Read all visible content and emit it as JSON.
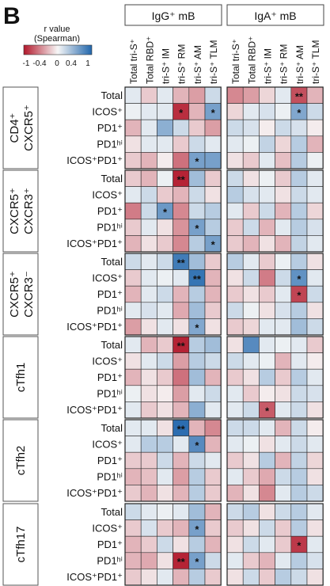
{
  "panel_letter": "B",
  "legend": {
    "title_line1": "r value",
    "title_line2": "(Spearman)",
    "ticks": [
      "-1",
      "-0.4",
      "0",
      "0.4",
      "1"
    ],
    "scale_min": -1,
    "scale_max": 1,
    "color_negative": "#b2182b",
    "color_mid": "#f7f7f7",
    "color_positive": "#2166ac"
  },
  "chart_data": {
    "type": "heatmap",
    "groups": [
      "IgG⁺ mB",
      "IgA⁺ mB"
    ],
    "columns": [
      "Total tri-S⁺",
      "Total RBD⁺",
      "tri-S⁺ IM",
      "tri-S⁺ RM",
      "tri-S⁺ AM",
      "tri-S⁺ TLM"
    ],
    "row_labels": [
      "Total",
      "ICOS⁺",
      "PD1⁺",
      "PD1ʰⁱ",
      "ICOS⁺PD1⁺"
    ],
    "blocks": [
      {
        "name_lines": [
          "CD4⁺",
          "CXCR5⁺"
        ],
        "igg": [
          [
            0.1,
            -0.2,
            0.1,
            -0.3,
            -0.4,
            0.2
          ],
          [
            0.05,
            0.1,
            0.1,
            -0.9,
            -0.3,
            0.6
          ],
          [
            -0.3,
            0.1,
            0.5,
            0.2,
            -0.2,
            -0.4
          ],
          [
            -0.1,
            0.1,
            0.1,
            -0.2,
            0.2,
            0.1
          ],
          [
            -0.2,
            -0.3,
            -0.05,
            -0.6,
            0.6,
            0.6
          ]
        ],
        "igg_sig": [
          [
            "",
            "",
            "",
            "",
            "",
            ""
          ],
          [
            "",
            "",
            "",
            "*",
            "",
            "*"
          ],
          [
            "",
            "",
            "",
            "",
            "",
            ""
          ],
          [
            "",
            "",
            "",
            "",
            "",
            ""
          ],
          [
            "",
            "",
            "",
            "",
            "*",
            ""
          ]
        ],
        "iga": [
          [
            -0.5,
            -0.4,
            -0.15,
            0.1,
            -0.75,
            -0.3
          ],
          [
            -0.15,
            0.1,
            0.15,
            0.05,
            0.55,
            0.2
          ],
          [
            0.2,
            0.15,
            -0.05,
            0.2,
            0.15,
            -0.05
          ],
          [
            0.1,
            0.05,
            0.25,
            -0.15,
            0.3,
            -0.3
          ],
          [
            -0.1,
            -0.2,
            0.1,
            -0.25,
            0.3,
            0.05
          ]
        ],
        "iga_sig": [
          [
            "",
            "",
            "",
            "",
            "**",
            ""
          ],
          [
            "",
            "",
            "",
            "",
            "*",
            ""
          ],
          [
            "",
            "",
            "",
            "",
            "",
            ""
          ],
          [
            "",
            "",
            "",
            "",
            "",
            ""
          ],
          [
            "",
            "",
            "",
            "",
            "",
            ""
          ]
        ]
      },
      {
        "name_lines": [
          "CXCR5⁺",
          "CXCR3⁺"
        ],
        "igg": [
          [
            -0.2,
            -0.3,
            0.05,
            -0.95,
            0.4,
            -0.2
          ],
          [
            0.1,
            0.2,
            -0.2,
            -0.3,
            0.2,
            -0.1
          ],
          [
            -0.55,
            0.2,
            0.65,
            -0.5,
            0.2,
            0.3
          ],
          [
            -0.2,
            0.1,
            -0.1,
            -0.45,
            0.6,
            0.3
          ],
          [
            -0.3,
            -0.1,
            -0.2,
            -0.5,
            0.3,
            0.6
          ]
        ],
        "igg_sig": [
          [
            "",
            "",
            "",
            "**",
            "",
            ""
          ],
          [
            "",
            "",
            "",
            "",
            "",
            ""
          ],
          [
            "",
            "",
            "*",
            "",
            "",
            ""
          ],
          [
            "",
            "",
            "",
            "",
            "*",
            ""
          ],
          [
            "",
            "",
            "",
            "",
            "",
            "*"
          ]
        ],
        "iga": [
          [
            0.2,
            -0.1,
            0.05,
            -0.2,
            0.3,
            0.1
          ],
          [
            0.3,
            0.15,
            0.1,
            -0.1,
            0.2,
            0.1
          ],
          [
            0.1,
            -0.2,
            0.2,
            -0.3,
            0.3,
            -0.15
          ],
          [
            -0.2,
            0.2,
            -0.3,
            0.1,
            0.3,
            0.15
          ],
          [
            -0.2,
            -0.3,
            -0.1,
            -0.3,
            0.25,
            0.1
          ]
        ],
        "iga_sig": [
          [
            "",
            "",
            "",
            "",
            "",
            ""
          ],
          [
            "",
            "",
            "",
            "",
            "",
            ""
          ],
          [
            "",
            "",
            "",
            "",
            "",
            ""
          ],
          [
            "",
            "",
            "",
            "",
            "",
            ""
          ],
          [
            "",
            "",
            "",
            "",
            "",
            ""
          ]
        ]
      },
      {
        "name_lines": [
          "CXCR5⁺",
          "CXCR3⁻"
        ],
        "igg": [
          [
            0.2,
            0.1,
            0.2,
            0.85,
            0.4,
            -0.2
          ],
          [
            -0.2,
            0.1,
            0.05,
            0.1,
            0.9,
            -0.3
          ],
          [
            -0.3,
            0.1,
            0.2,
            -0.3,
            0.3,
            -0.3
          ],
          [
            0.1,
            0.15,
            0.1,
            -0.35,
            0.4,
            -0.2
          ],
          [
            -0.4,
            -0.1,
            0.1,
            -0.1,
            0.55,
            -0.1
          ]
        ],
        "igg_sig": [
          [
            "",
            "",
            "",
            "**",
            "",
            ""
          ],
          [
            "",
            "",
            "",
            "",
            "**",
            ""
          ],
          [
            "",
            "",
            "",
            "",
            "",
            ""
          ],
          [
            "",
            "",
            "",
            "",
            "",
            ""
          ],
          [
            "",
            "",
            "",
            "",
            "*",
            ""
          ]
        ],
        "iga": [
          [
            0.3,
            0.1,
            -0.2,
            0.05,
            0.3,
            -0.1
          ],
          [
            -0.1,
            0.2,
            -0.55,
            0.2,
            0.7,
            0.1
          ],
          [
            -0.2,
            -0.1,
            -0.2,
            0.1,
            -0.8,
            0.2
          ],
          [
            0.2,
            0.05,
            -0.1,
            0.15,
            0.3,
            -0.1
          ],
          [
            -0.2,
            -0.15,
            0.1,
            0.1,
            0.4,
            0.2
          ]
        ],
        "iga_sig": [
          [
            "",
            "",
            "",
            "",
            "",
            ""
          ],
          [
            "",
            "",
            "",
            "",
            "*",
            ""
          ],
          [
            "",
            "",
            "",
            "",
            "*",
            ""
          ],
          [
            "",
            "",
            "",
            "",
            "",
            ""
          ],
          [
            "",
            "",
            "",
            "",
            "",
            ""
          ]
        ]
      },
      {
        "name_lines": [
          "cTfh1"
        ],
        "igg": [
          [
            0.1,
            -0.3,
            -0.2,
            -0.95,
            0.3,
            0.4
          ],
          [
            -0.1,
            0.1,
            0.2,
            -0.4,
            0.3,
            0.2
          ],
          [
            -0.3,
            -0.1,
            -0.2,
            -0.6,
            0.4,
            -0.3
          ],
          [
            0.05,
            -0.1,
            -0.05,
            -0.4,
            0.1,
            0.2
          ],
          [
            0.1,
            -0.2,
            -0.1,
            -0.3,
            0.5,
            0.1
          ]
        ],
        "igg_sig": [
          [
            "",
            "",
            "",
            "**",
            "",
            ""
          ],
          [
            "",
            "",
            "",
            "",
            "",
            ""
          ],
          [
            "",
            "",
            "",
            "",
            "",
            ""
          ],
          [
            "",
            "",
            "",
            "",
            "",
            ""
          ],
          [
            "",
            "",
            "",
            "",
            "",
            ""
          ]
        ],
        "iga": [
          [
            -0.1,
            0.75,
            0.1,
            0.05,
            0.1,
            -0.2
          ],
          [
            0.2,
            0.1,
            0.05,
            -0.3,
            0.1,
            -0.05
          ],
          [
            -0.2,
            -0.1,
            0.3,
            -0.2,
            0.3,
            0.1
          ],
          [
            0.1,
            -0.2,
            -0.05,
            -0.1,
            0.2,
            0.15
          ],
          [
            0.1,
            0.2,
            -0.7,
            0.1,
            0.2,
            -0.1
          ]
        ],
        "iga_sig": [
          [
            "",
            "",
            "",
            "",
            "",
            ""
          ],
          [
            "",
            "",
            "",
            "",
            "",
            ""
          ],
          [
            "",
            "",
            "",
            "",
            "",
            ""
          ],
          [
            "",
            "",
            "",
            "",
            "",
            ""
          ],
          [
            "",
            "",
            "*",
            "",
            "",
            ""
          ]
        ]
      },
      {
        "name_lines": [
          "cTfh2"
        ],
        "igg": [
          [
            0.1,
            0.1,
            -0.1,
            0.95,
            -0.3,
            -0.5
          ],
          [
            0.1,
            0.3,
            0.3,
            0.1,
            0.75,
            -0.3
          ],
          [
            -0.2,
            -0.2,
            0.2,
            -0.3,
            0.2,
            0.1
          ],
          [
            -0.3,
            -0.25,
            0.1,
            -0.4,
            0.3,
            -0.2
          ],
          [
            -0.2,
            -0.3,
            -0.1,
            -0.3,
            0.3,
            -0.2
          ]
        ],
        "igg_sig": [
          [
            "",
            "",
            "",
            "**",
            "",
            ""
          ],
          [
            "",
            "",
            "",
            "",
            "*",
            ""
          ],
          [
            "",
            "",
            "",
            "",
            "",
            ""
          ],
          [
            "",
            "",
            "",
            "",
            "",
            ""
          ],
          [
            "",
            "",
            "",
            "",
            "",
            ""
          ]
        ],
        "iga": [
          [
            0.2,
            0.2,
            0.1,
            -0.3,
            0.2,
            -0.05
          ],
          [
            0.1,
            0.05,
            -0.1,
            0.1,
            0.2,
            0.1
          ],
          [
            -0.2,
            -0.1,
            0.3,
            -0.3,
            0.25,
            -0.15
          ],
          [
            0.1,
            -0.2,
            -0.35,
            0.2,
            0.3,
            -0.1
          ],
          [
            -0.3,
            -0.1,
            -0.5,
            0.1,
            0.3,
            0.2
          ]
        ],
        "iga_sig": [
          [
            "",
            "",
            "",
            "",
            "",
            ""
          ],
          [
            "",
            "",
            "",
            "",
            "",
            ""
          ],
          [
            "",
            "",
            "",
            "",
            "",
            ""
          ],
          [
            "",
            "",
            "",
            "",
            "",
            ""
          ],
          [
            "",
            "",
            "",
            "",
            "",
            ""
          ]
        ]
      },
      {
        "name_lines": [
          "cTfh17"
        ],
        "igg": [
          [
            0.2,
            0.1,
            0.05,
            0.1,
            0.4,
            -0.3
          ],
          [
            -0.2,
            0.15,
            -0.2,
            -0.3,
            0.6,
            -0.2
          ],
          [
            -0.3,
            -0.2,
            0.2,
            -0.1,
            0.3,
            -0.3
          ],
          [
            -0.3,
            -0.35,
            -0.1,
            -0.95,
            0.6,
            0.2
          ],
          [
            -0.2,
            -0.1,
            0.1,
            -0.3,
            0.3,
            -0.2
          ]
        ],
        "igg_sig": [
          [
            "",
            "",
            "",
            "",
            "",
            ""
          ],
          [
            "",
            "",
            "",
            "",
            "*",
            ""
          ],
          [
            "",
            "",
            "",
            "",
            "",
            ""
          ],
          [
            "",
            "",
            "",
            "**",
            "*",
            ""
          ],
          [
            "",
            "",
            "",
            "",
            "",
            ""
          ]
        ],
        "iga": [
          [
            0.2,
            0.3,
            -0.1,
            0.2,
            0.3,
            0.1
          ],
          [
            -0.2,
            -0.1,
            0.2,
            -0.2,
            0.3,
            -0.1
          ],
          [
            -0.1,
            0.2,
            0.1,
            -0.2,
            -0.85,
            0.1
          ],
          [
            0.1,
            -0.2,
            -0.3,
            0.1,
            0.3,
            0.15
          ],
          [
            -0.1,
            0.2,
            -0.2,
            0.3,
            0.2,
            -0.1
          ]
        ],
        "iga_sig": [
          [
            "",
            "",
            "",
            "",
            "",
            ""
          ],
          [
            "",
            "",
            "",
            "",
            "",
            ""
          ],
          [
            "",
            "",
            "",
            "",
            "*",
            ""
          ],
          [
            "",
            "",
            "",
            "",
            "",
            ""
          ],
          [
            "",
            "",
            "",
            "",
            "",
            ""
          ]
        ]
      }
    ]
  }
}
